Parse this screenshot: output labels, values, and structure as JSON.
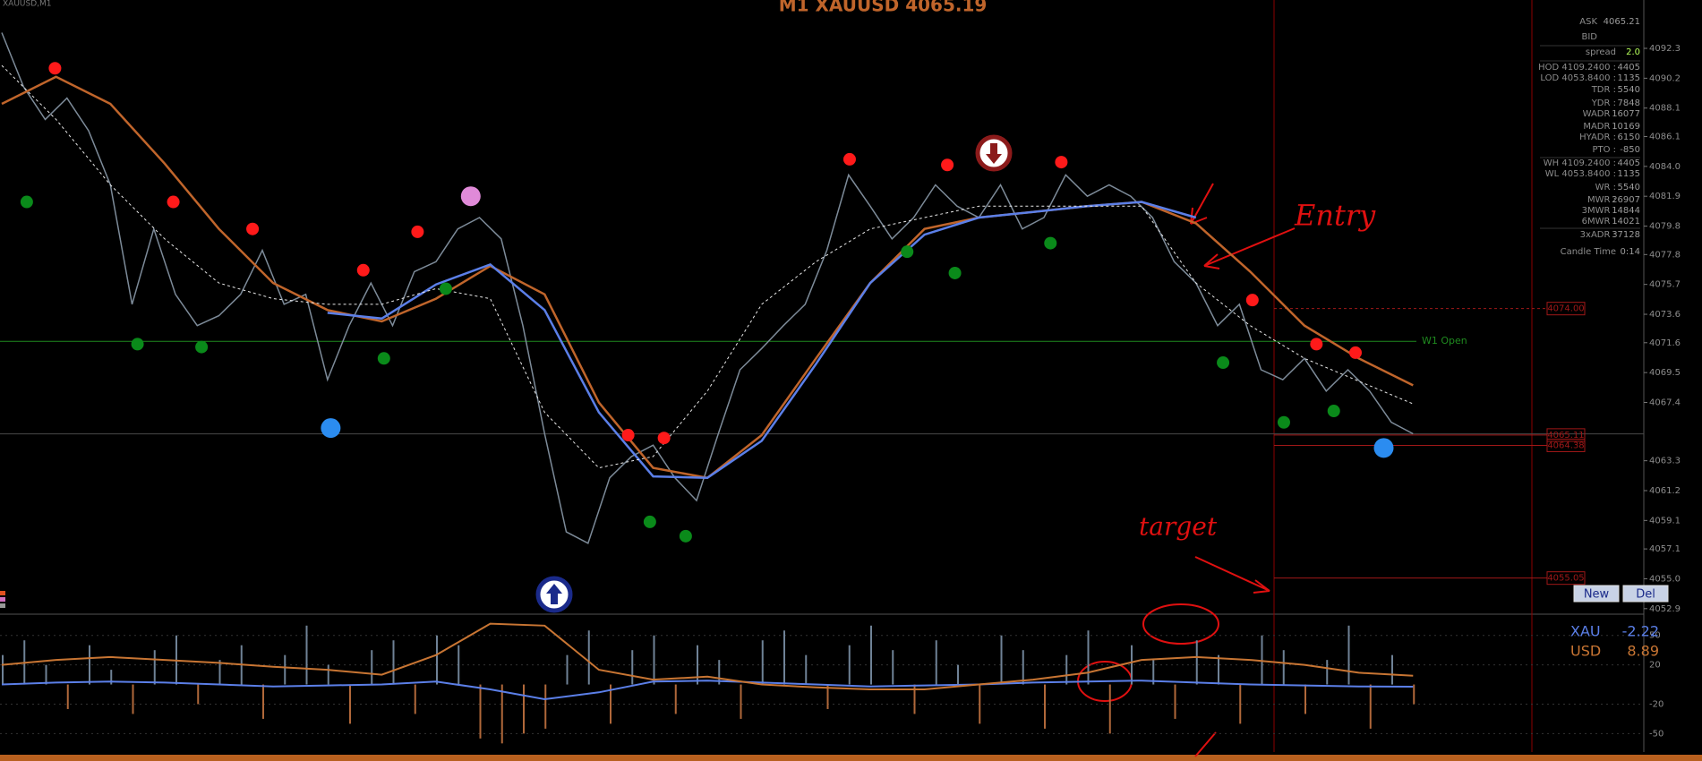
{
  "chart_data": {
    "type": "line",
    "title": "M1 XAUUSD 4065.19",
    "symbol_label": "XAUUSD,M1",
    "ylim": [
      4052.7,
      4095.7
    ],
    "yticks": [
      4092.3,
      4090.2,
      4088.1,
      4086.1,
      {
        "value": 4084.0,
        "label": "4084.0"
      },
      4081.9,
      4079.8,
      4077.8,
      4075.7,
      4073.6,
      4071.6,
      4069.5,
      4067.4,
      4063.3,
      4061.2,
      4059.1,
      4057.1,
      {
        "value": 4055.0,
        "label": "4055.0"
      },
      4052.9
    ],
    "price": {
      "color": "#7d8b99",
      "values": [
        4093.4,
        4089.6,
        4087.3,
        4088.8,
        4086.5,
        4082.7,
        4074.3,
        4079.6,
        4075.0,
        4072.8,
        4073.5,
        4075.0,
        4078.1,
        4074.3,
        4075.0,
        4069.0,
        4072.8,
        4075.8,
        4072.8,
        4076.6,
        4077.3,
        4079.6,
        4080.4,
        4078.9,
        4072.8,
        4065.2,
        4058.3,
        4057.5,
        4062.1,
        4063.6,
        4064.4,
        4062.1,
        4060.5,
        4065.2,
        4069.7,
        4071.2,
        4072.8,
        4074.3,
        4078.1,
        4083.4,
        4081.2,
        4078.9,
        4080.4,
        4082.7,
        4081.2,
        4080.4,
        4082.7,
        4079.6,
        4080.4,
        4083.4,
        4081.9,
        4082.7,
        4081.9,
        4080.4,
        4077.3,
        4075.8,
        4072.8,
        4074.3,
        4069.7,
        4069.0,
        4070.5,
        4068.2,
        4069.7,
        4068.2,
        4066.0,
        4065.2
      ]
    },
    "series": [
      {
        "color": "#c0652b",
        "values": [
          4088.4,
          4090.3,
          4088.4,
          4084.2,
          4079.6,
          4075.8,
          4073.9,
          4073.1,
          4074.7,
          4077.0,
          4075.0,
          4067.4,
          4062.8,
          4062.1,
          4065.1,
          4070.5,
          4075.8,
          4079.6,
          4080.4,
          4080.8,
          4081.2,
          4081.5,
          4080.0,
          4076.6,
          4072.8,
          4070.5,
          4068.6
        ]
      },
      {
        "color": "#5b7fe8",
        "values": [
          null,
          null,
          null,
          null,
          null,
          null,
          4073.7,
          4073.3,
          4075.7,
          4077.1,
          4073.9,
          4066.7,
          4062.2,
          4062.1,
          4064.7,
          4070.1,
          4075.8,
          4079.2,
          4080.4,
          4080.8,
          4081.2,
          4081.5,
          4080.4,
          null,
          null,
          null,
          null
        ]
      },
      {
        "color": "#e8e8e8",
        "dashed": true,
        "values": [
          4091.1,
          4087.3,
          4082.7,
          4078.9,
          4075.8,
          4074.7,
          4074.3,
          4074.3,
          4075.4,
          4074.7,
          4066.7,
          4062.8,
          4063.6,
          4068.2,
          4074.3,
          4077.3,
          4079.6,
          4080.4,
          4081.2,
          4081.2,
          4081.2,
          4081.2,
          4075.8,
          4072.8,
          4070.5,
          4068.9,
          4067.3
        ]
      }
    ],
    "markers": [
      {
        "color": "#ff1a1a",
        "x": [
          2.45,
          7.9,
          11.55,
          16.65,
          19.15,
          28.85,
          30.5,
          39.05,
          43.55,
          48.8,
          57.6,
          60.55,
          62.35
        ],
        "values": [
          4090.9,
          4081.5,
          4079.6,
          4076.7,
          4079.4,
          4065.1,
          4064.9,
          4084.5,
          4084.1,
          4084.3,
          4074.6,
          4071.5,
          4070.9
        ]
      },
      {
        "color": "#0a8a1a",
        "x": [
          1.15,
          6.25,
          9.2,
          17.6,
          20.45,
          29.85,
          31.5,
          41.7,
          43.9,
          48.3,
          56.25,
          59.05,
          61.35
        ],
        "values": [
          4081.5,
          4071.5,
          4071.3,
          4070.5,
          4075.4,
          4059.0,
          4058.0,
          4078.0,
          4076.5,
          4078.6,
          4070.2,
          4066.0,
          4066.8
        ]
      },
      {
        "color": "#2b8cf0",
        "size": "large",
        "x": [
          15.15,
          63.65
        ],
        "values": [
          4065.6,
          4064.2
        ]
      },
      {
        "color": "#e08ad8",
        "size": "large",
        "x": [
          21.6
        ],
        "values": [
          4081.9
        ]
      }
    ],
    "hlines": [
      {
        "value": 4071.7,
        "label": "W1 Open",
        "color": "#1f8a1f"
      },
      {
        "value": 4065.19,
        "color": "#4a4a4a"
      }
    ],
    "levels": [
      {
        "value": 4074.0,
        "label": "4074.00"
      },
      {
        "value": 4065.11,
        "label": "4065.11"
      },
      {
        "value": 4064.38,
        "label": "4064.38"
      },
      {
        "value": 4055.05,
        "label": "4055.05"
      }
    ],
    "annotations": [
      "Entry",
      "target"
    ],
    "sub": {
      "type": "line",
      "ylim": [
        -67,
        68
      ],
      "yticks": [
        50,
        20,
        -20,
        -50
      ],
      "histogram": {
        "pos_color": "#6f8296",
        "neg_color": "#b0683a",
        "values": [
          30,
          45,
          20,
          -25,
          40,
          15,
          -30,
          35,
          50,
          -20,
          25,
          40,
          -35,
          30,
          60,
          20,
          -40,
          35,
          45,
          -30,
          50,
          40,
          -55,
          -60,
          -50,
          -45,
          30,
          55,
          -40,
          35,
          50,
          -30,
          40,
          25,
          -35,
          45,
          55,
          30,
          -25,
          40,
          60,
          35,
          -30,
          45,
          20,
          -40,
          50,
          35,
          -45,
          30,
          55,
          -50,
          40,
          25,
          -35,
          45,
          30,
          -40,
          50,
          35,
          -30,
          25,
          60,
          -45,
          30,
          -20
        ]
      },
      "series": [
        {
          "name": "XAU",
          "color": "#5b7fe8",
          "values": [
            0,
            2,
            3,
            2,
            0,
            -2,
            -1,
            0,
            3,
            -5,
            -15,
            -8,
            3,
            4,
            2,
            0,
            -2,
            -1,
            0,
            2,
            3,
            4,
            2,
            0,
            -1,
            -2,
            -2.22
          ]
        },
        {
          "name": "USD",
          "color": "#c87533",
          "values": [
            20,
            25,
            28,
            25,
            22,
            18,
            15,
            10,
            30,
            62,
            60,
            15,
            5,
            8,
            0,
            -3,
            -5,
            -5,
            0,
            5,
            12,
            25,
            28,
            25,
            20,
            12,
            8.89
          ]
        }
      ]
    }
  },
  "info_panel": {
    "rows": [
      [
        "ASK",
        "4065.21"
      ],
      [
        "BID"
      ],
      [
        "spread",
        "2.0"
      ],
      [
        "HOD 4109.2400 :",
        "4405"
      ],
      [
        "LOD 4053.8400 :",
        "1135"
      ],
      [
        "TDR :",
        "5540"
      ],
      [
        "YDR :",
        "7848"
      ],
      [
        "WADR :",
        "16077"
      ],
      [
        "MADR :",
        "10169"
      ],
      [
        "HYADR :",
        "6150"
      ],
      [
        "PTO :",
        "-850"
      ],
      [
        "WH 4109.2400 :",
        "4405"
      ],
      [
        "WL 4053.8400 :",
        "1135"
      ],
      [
        "WR :",
        "5540"
      ],
      [
        "MWR :",
        "26907"
      ],
      [
        "3MWR :",
        "14844"
      ],
      [
        "6MWR :",
        "14021"
      ],
      [
        "3xADR :",
        "37128"
      ],
      [
        "Candle Time",
        "0:14"
      ]
    ]
  },
  "buttons": [
    "New",
    "Del"
  ]
}
